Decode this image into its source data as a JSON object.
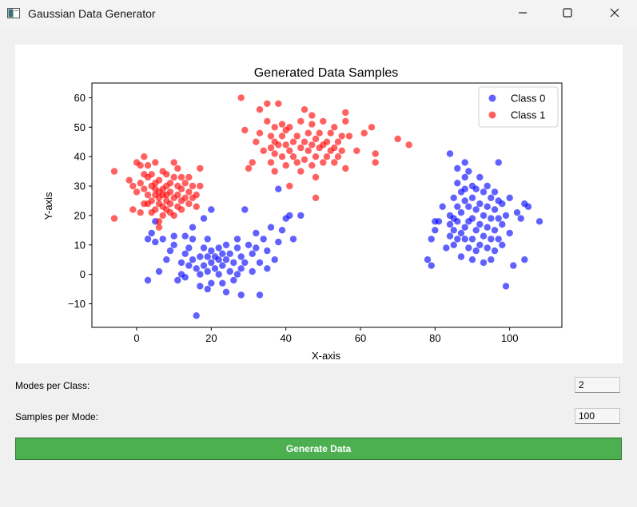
{
  "window": {
    "title": "Gaussian Data Generator"
  },
  "icons": {
    "app": "app-window-icon",
    "minimize": "minimize-icon",
    "maximize": "maximize-icon",
    "close": "close-icon"
  },
  "controls": {
    "modes_label": "Modes per Class:",
    "modes_value": "2",
    "samples_label": "Samples per Mode:",
    "samples_value": "100",
    "generate_label": "Generate Data",
    "generate_color": "#4caf50"
  },
  "chart_data": {
    "type": "scatter",
    "title": "Generated Data Samples",
    "xlabel": "X-axis",
    "ylabel": "Y-axis",
    "xlim": [
      -12,
      114
    ],
    "ylim": [
      -18,
      65
    ],
    "xticks": [
      0,
      20,
      40,
      60,
      80,
      100
    ],
    "yticks": [
      -10,
      0,
      10,
      20,
      30,
      40,
      50,
      60
    ],
    "grid": false,
    "legend_position": "top-right",
    "series": [
      {
        "name": "Class 0",
        "color": "#0000ff",
        "points": [
          [
            16,
            -14
          ],
          [
            3,
            -2
          ],
          [
            6,
            1
          ],
          [
            8,
            5
          ],
          [
            9,
            8
          ],
          [
            11,
            -2
          ],
          [
            12,
            0
          ],
          [
            12,
            4
          ],
          [
            13,
            -1
          ],
          [
            13,
            7
          ],
          [
            14,
            3
          ],
          [
            14,
            9
          ],
          [
            15,
            5
          ],
          [
            15,
            12
          ],
          [
            16,
            2
          ],
          [
            17,
            0
          ],
          [
            17,
            6
          ],
          [
            17,
            -4
          ],
          [
            18,
            3
          ],
          [
            18,
            9
          ],
          [
            19,
            -5
          ],
          [
            19,
            1
          ],
          [
            19,
            6
          ],
          [
            19,
            12
          ],
          [
            20,
            -3
          ],
          [
            20,
            4
          ],
          [
            20,
            8
          ],
          [
            21,
            2
          ],
          [
            21,
            6
          ],
          [
            22,
            0
          ],
          [
            22,
            5
          ],
          [
            22,
            9
          ],
          [
            23,
            -3
          ],
          [
            23,
            3
          ],
          [
            23,
            7
          ],
          [
            24,
            -6
          ],
          [
            24,
            5
          ],
          [
            25,
            1
          ],
          [
            25,
            7
          ],
          [
            26,
            -2
          ],
          [
            26,
            4
          ],
          [
            27,
            0
          ],
          [
            27,
            9
          ],
          [
            28,
            -7
          ],
          [
            28,
            2
          ],
          [
            28,
            6
          ],
          [
            29,
            4
          ],
          [
            30,
            10
          ],
          [
            31,
            1
          ],
          [
            31,
            7
          ],
          [
            32,
            14
          ],
          [
            33,
            -7
          ],
          [
            33,
            4
          ],
          [
            34,
            12
          ],
          [
            35,
            2
          ],
          [
            35,
            8
          ],
          [
            36,
            16
          ],
          [
            37,
            5
          ],
          [
            38,
            11
          ],
          [
            39,
            15
          ],
          [
            40,
            19
          ],
          [
            41,
            20
          ],
          [
            42,
            12
          ],
          [
            44,
            20
          ],
          [
            13,
            13
          ],
          [
            10,
            10
          ],
          [
            7,
            12
          ],
          [
            5,
            11
          ],
          [
            3,
            12
          ],
          [
            4,
            14
          ],
          [
            5,
            18
          ],
          [
            15,
            16
          ],
          [
            18,
            19
          ],
          [
            20,
            22
          ],
          [
            29,
            22
          ],
          [
            38,
            29
          ],
          [
            10,
            13
          ],
          [
            24,
            10
          ],
          [
            27,
            12
          ],
          [
            32,
            9
          ],
          [
            78,
            5
          ],
          [
            79,
            3
          ],
          [
            79,
            12
          ],
          [
            80,
            15
          ],
          [
            80,
            18
          ],
          [
            81,
            18
          ],
          [
            82,
            23
          ],
          [
            83,
            9
          ],
          [
            84,
            13
          ],
          [
            84,
            17
          ],
          [
            84,
            20
          ],
          [
            84,
            41
          ],
          [
            85,
            10
          ],
          [
            85,
            15
          ],
          [
            85,
            19
          ],
          [
            85,
            26
          ],
          [
            86,
            12
          ],
          [
            86,
            18
          ],
          [
            86,
            23
          ],
          [
            86,
            31
          ],
          [
            87,
            6
          ],
          [
            87,
            14
          ],
          [
            87,
            21
          ],
          [
            87,
            28
          ],
          [
            88,
            16
          ],
          [
            88,
            12
          ],
          [
            88,
            25
          ],
          [
            88,
            33
          ],
          [
            88,
            38
          ],
          [
            89,
            9
          ],
          [
            89,
            18
          ],
          [
            89,
            23
          ],
          [
            89,
            35
          ],
          [
            90,
            5
          ],
          [
            90,
            12
          ],
          [
            90,
            19
          ],
          [
            90,
            26
          ],
          [
            90,
            30
          ],
          [
            91,
            8
          ],
          [
            91,
            15
          ],
          [
            91,
            22
          ],
          [
            91,
            29
          ],
          [
            92,
            10
          ],
          [
            92,
            17
          ],
          [
            92,
            24
          ],
          [
            92,
            33
          ],
          [
            93,
            4
          ],
          [
            93,
            13
          ],
          [
            93,
            20
          ],
          [
            93,
            28
          ],
          [
            94,
            9
          ],
          [
            94,
            16
          ],
          [
            94,
            23
          ],
          [
            94,
            30
          ],
          [
            95,
            5
          ],
          [
            95,
            12
          ],
          [
            95,
            19
          ],
          [
            95,
            26
          ],
          [
            96,
            8
          ],
          [
            96,
            15
          ],
          [
            96,
            22
          ],
          [
            96,
            28
          ],
          [
            97,
            12
          ],
          [
            97,
            19
          ],
          [
            97,
            25
          ],
          [
            97,
            38
          ],
          [
            98,
            10
          ],
          [
            98,
            17
          ],
          [
            98,
            24
          ],
          [
            99,
            -4
          ],
          [
            99,
            20
          ],
          [
            100,
            14
          ],
          [
            100,
            26
          ],
          [
            101,
            3
          ],
          [
            102,
            21
          ],
          [
            103,
            19
          ],
          [
            104,
            5
          ],
          [
            104,
            24
          ],
          [
            105,
            23
          ],
          [
            108,
            18
          ],
          [
            86,
            36
          ],
          [
            88,
            29
          ]
        ]
      },
      {
        "name": "Class 1",
        "color": "#ff0000",
        "points": [
          [
            -6,
            19
          ],
          [
            -6,
            35
          ],
          [
            -2,
            32
          ],
          [
            -1,
            22
          ],
          [
            -1,
            30
          ],
          [
            0,
            28
          ],
          [
            0,
            38
          ],
          [
            1,
            21
          ],
          [
            1,
            31
          ],
          [
            1,
            37
          ],
          [
            2,
            24
          ],
          [
            2,
            29
          ],
          [
            2,
            40
          ],
          [
            3,
            27
          ],
          [
            3,
            33
          ],
          [
            3,
            37
          ],
          [
            4,
            21
          ],
          [
            4,
            25
          ],
          [
            4,
            30
          ],
          [
            4,
            34
          ],
          [
            5,
            22
          ],
          [
            5,
            27
          ],
          [
            5,
            29
          ],
          [
            5,
            31
          ],
          [
            5,
            38
          ],
          [
            6,
            18
          ],
          [
            6,
            24
          ],
          [
            6,
            26
          ],
          [
            6,
            28
          ],
          [
            6,
            32
          ],
          [
            7,
            20
          ],
          [
            7,
            23
          ],
          [
            7,
            27
          ],
          [
            7,
            29
          ],
          [
            7,
            35
          ],
          [
            8,
            22
          ],
          [
            8,
            25
          ],
          [
            8,
            27
          ],
          [
            8,
            30
          ],
          [
            8,
            34
          ],
          [
            9,
            21
          ],
          [
            9,
            24
          ],
          [
            9,
            28
          ],
          [
            9,
            31
          ],
          [
            10,
            20
          ],
          [
            10,
            26
          ],
          [
            10,
            33
          ],
          [
            10,
            38
          ],
          [
            11,
            23
          ],
          [
            11,
            27
          ],
          [
            11,
            30
          ],
          [
            11,
            36
          ],
          [
            12,
            22
          ],
          [
            12,
            25
          ],
          [
            12,
            29
          ],
          [
            12,
            33
          ],
          [
            13,
            26
          ],
          [
            13,
            31
          ],
          [
            14,
            24
          ],
          [
            14,
            28
          ],
          [
            14,
            33
          ],
          [
            15,
            26
          ],
          [
            15,
            30
          ],
          [
            16,
            23
          ],
          [
            16,
            27
          ],
          [
            17,
            30
          ],
          [
            17,
            36
          ],
          [
            3,
            24
          ],
          [
            6,
            16
          ],
          [
            2,
            34
          ],
          [
            28,
            60
          ],
          [
            29,
            49
          ],
          [
            30,
            36
          ],
          [
            31,
            38
          ],
          [
            32,
            45
          ],
          [
            33,
            56
          ],
          [
            33,
            48
          ],
          [
            34,
            42
          ],
          [
            35,
            52
          ],
          [
            35,
            58
          ],
          [
            36,
            38
          ],
          [
            36,
            43
          ],
          [
            36,
            47
          ],
          [
            37,
            41
          ],
          [
            37,
            45
          ],
          [
            37,
            50
          ],
          [
            37,
            35
          ],
          [
            38,
            58
          ],
          [
            38,
            44
          ],
          [
            39,
            40
          ],
          [
            39,
            47
          ],
          [
            39,
            51
          ],
          [
            40,
            37
          ],
          [
            40,
            44
          ],
          [
            40,
            49
          ],
          [
            41,
            30
          ],
          [
            41,
            42
          ],
          [
            41,
            50
          ],
          [
            42,
            45
          ],
          [
            42,
            40
          ],
          [
            43,
            38
          ],
          [
            43,
            47
          ],
          [
            44,
            35
          ],
          [
            44,
            43
          ],
          [
            44,
            52
          ],
          [
            45,
            39
          ],
          [
            45,
            45
          ],
          [
            45,
            56
          ],
          [
            46,
            42
          ],
          [
            46,
            48
          ],
          [
            47,
            37
          ],
          [
            47,
            44
          ],
          [
            47,
            51
          ],
          [
            47,
            54
          ],
          [
            48,
            33
          ],
          [
            48,
            40
          ],
          [
            48,
            46
          ],
          [
            48,
            26
          ],
          [
            49,
            43
          ],
          [
            49,
            48
          ],
          [
            50,
            38
          ],
          [
            50,
            44
          ],
          [
            50,
            52
          ],
          [
            51,
            40
          ],
          [
            51,
            45
          ],
          [
            52,
            42
          ],
          [
            52,
            48
          ],
          [
            53,
            38
          ],
          [
            53,
            43
          ],
          [
            53,
            50
          ],
          [
            54,
            40
          ],
          [
            54,
            45
          ],
          [
            55,
            47
          ],
          [
            55,
            42
          ],
          [
            56,
            36
          ],
          [
            56,
            52
          ],
          [
            56,
            55
          ],
          [
            57,
            47
          ],
          [
            59,
            42
          ],
          [
            61,
            48
          ],
          [
            63,
            50
          ],
          [
            64,
            41
          ],
          [
            64,
            38
          ],
          [
            70,
            46
          ],
          [
            73,
            44
          ]
        ]
      }
    ]
  }
}
